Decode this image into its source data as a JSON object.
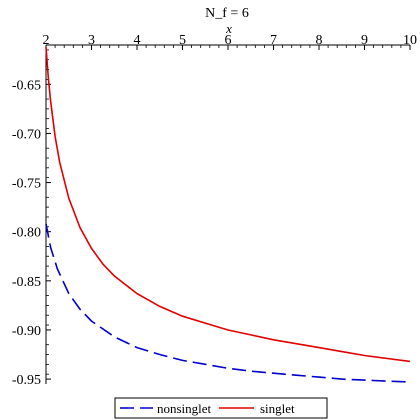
{
  "chart_data": {
    "type": "line",
    "title": "N_f = 6",
    "xlabel": "x",
    "ylabel": "",
    "xlim": [
      2,
      10
    ],
    "ylim": [
      -0.955,
      -0.61
    ],
    "x_axis_position": "top",
    "x_ticks": [
      2,
      3,
      4,
      5,
      6,
      7,
      8,
      9,
      10
    ],
    "x_tick_labels": [
      "2",
      "3",
      "4",
      "5",
      "6",
      "7",
      "8",
      "9",
      "10"
    ],
    "y_ticks": [
      -0.65,
      -0.7,
      -0.75,
      -0.8,
      -0.85,
      -0.9,
      -0.95
    ],
    "y_tick_labels": [
      "-0.65",
      "-0.70",
      "-0.75",
      "-0.80",
      "-0.85",
      "-0.90",
      "-0.95"
    ],
    "grid": false,
    "legend_position": "bottom",
    "series": [
      {
        "name": "nonsinglet",
        "color": "#0000cc",
        "style": "dashed",
        "x": [
          2.0,
          2.1,
          2.25,
          2.5,
          2.75,
          3.0,
          3.5,
          4.0,
          4.5,
          5.0,
          5.5,
          6.0,
          6.5,
          7.0,
          7.5,
          8.0,
          8.5,
          9.0,
          9.5,
          10.0
        ],
        "y": [
          -0.792,
          -0.816,
          -0.838,
          -0.863,
          -0.879,
          -0.891,
          -0.907,
          -0.918,
          -0.925,
          -0.931,
          -0.935,
          -0.939,
          -0.942,
          -0.944,
          -0.946,
          -0.948,
          -0.95,
          -0.951,
          -0.952,
          -0.953
        ]
      },
      {
        "name": "singlet",
        "color": "#e00000",
        "style": "solid",
        "x": [
          2.0,
          2.05,
          2.1,
          2.2,
          2.3,
          2.5,
          2.75,
          3.0,
          3.25,
          3.5,
          4.0,
          4.5,
          5.0,
          5.5,
          6.0,
          6.5,
          7.0,
          7.5,
          8.0,
          8.5,
          9.0,
          9.5,
          10.0
        ],
        "y": [
          -0.612,
          -0.643,
          -0.667,
          -0.703,
          -0.729,
          -0.766,
          -0.796,
          -0.817,
          -0.833,
          -0.845,
          -0.863,
          -0.876,
          -0.886,
          -0.893,
          -0.9,
          -0.905,
          -0.91,
          -0.914,
          -0.918,
          -0.922,
          -0.926,
          -0.929,
          -0.932
        ]
      }
    ]
  }
}
